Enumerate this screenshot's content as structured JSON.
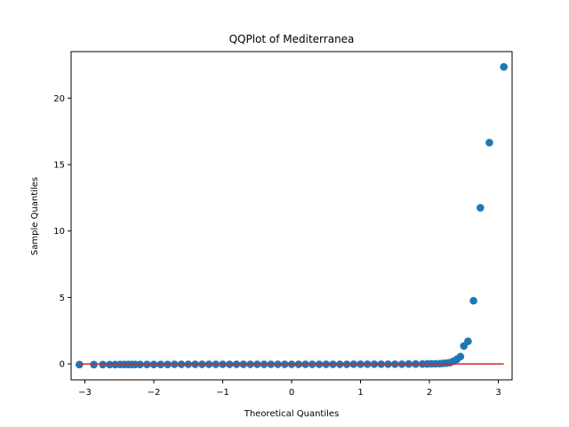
{
  "chart_data": {
    "type": "scatter",
    "title": "QQPlot of Mediterranea",
    "xlabel": "Theoretical Quantiles",
    "ylabel": "Sample Quantiles",
    "xlim": [
      -3.2,
      3.2
    ],
    "ylim": [
      -1.2,
      23.5
    ],
    "xticks": [
      -3,
      -2,
      -1,
      0,
      1,
      2,
      3
    ],
    "yticks": [
      0,
      5,
      10,
      15,
      20
    ],
    "grid": false,
    "marker_color": "#1f77b4",
    "reference_line": {
      "color": "#d62728",
      "x": [
        -3.08,
        3.08
      ],
      "y": [
        0.0,
        0.0
      ]
    },
    "series": [
      {
        "points": [
          [
            -3.08,
            -0.05
          ],
          [
            -2.87,
            -0.05
          ],
          [
            -2.74,
            -0.05
          ],
          [
            -2.64,
            -0.05
          ],
          [
            -2.56,
            -0.05
          ],
          [
            -2.49,
            -0.04
          ],
          [
            -2.43,
            -0.04
          ],
          [
            -2.37,
            -0.04
          ],
          [
            -2.32,
            -0.04
          ],
          [
            -2.27,
            -0.04
          ],
          [
            -2.2,
            -0.04
          ],
          [
            -2.1,
            -0.04
          ],
          [
            -2.0,
            -0.04
          ],
          [
            -1.9,
            -0.04
          ],
          [
            -1.8,
            -0.04
          ],
          [
            -1.7,
            -0.03
          ],
          [
            -1.6,
            -0.03
          ],
          [
            -1.5,
            -0.03
          ],
          [
            -1.4,
            -0.03
          ],
          [
            -1.3,
            -0.03
          ],
          [
            -1.2,
            -0.03
          ],
          [
            -1.1,
            -0.03
          ],
          [
            -1.0,
            -0.03
          ],
          [
            -0.9,
            -0.03
          ],
          [
            -0.8,
            -0.03
          ],
          [
            -0.7,
            -0.03
          ],
          [
            -0.6,
            -0.03
          ],
          [
            -0.5,
            -0.03
          ],
          [
            -0.4,
            -0.03
          ],
          [
            -0.3,
            -0.03
          ],
          [
            -0.2,
            -0.03
          ],
          [
            -0.1,
            -0.03
          ],
          [
            0.0,
            -0.03
          ],
          [
            0.1,
            -0.03
          ],
          [
            0.2,
            -0.03
          ],
          [
            0.3,
            -0.03
          ],
          [
            0.4,
            -0.03
          ],
          [
            0.5,
            -0.03
          ],
          [
            0.6,
            -0.03
          ],
          [
            0.7,
            -0.03
          ],
          [
            0.8,
            -0.03
          ],
          [
            0.9,
            -0.02
          ],
          [
            1.0,
            -0.02
          ],
          [
            1.1,
            -0.02
          ],
          [
            1.2,
            -0.02
          ],
          [
            1.3,
            -0.02
          ],
          [
            1.4,
            -0.02
          ],
          [
            1.5,
            -0.02
          ],
          [
            1.6,
            -0.02
          ],
          [
            1.7,
            -0.01
          ],
          [
            1.8,
            -0.01
          ],
          [
            1.9,
            -0.01
          ],
          [
            1.97,
            0.0
          ],
          [
            2.03,
            0.01
          ],
          [
            2.09,
            0.01
          ],
          [
            2.15,
            0.02
          ],
          [
            2.2,
            0.04
          ],
          [
            2.25,
            0.06
          ],
          [
            2.3,
            0.1
          ],
          [
            2.35,
            0.2
          ],
          [
            2.4,
            0.35
          ],
          [
            2.45,
            0.55
          ],
          [
            2.5,
            1.35
          ],
          [
            2.56,
            1.7
          ],
          [
            2.64,
            4.75
          ],
          [
            2.74,
            11.75
          ],
          [
            2.87,
            16.65
          ],
          [
            3.08,
            22.35
          ]
        ]
      }
    ]
  }
}
